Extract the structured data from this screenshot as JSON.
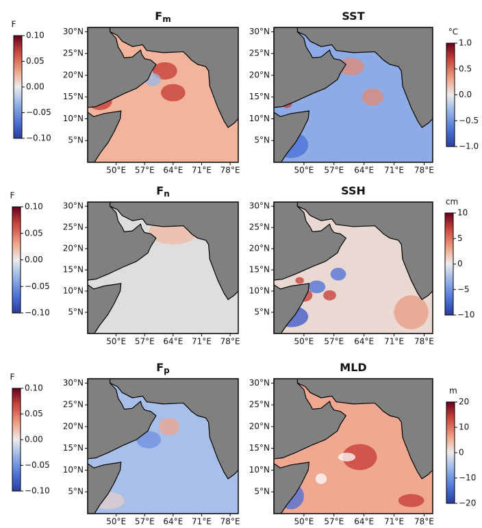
{
  "chart_data": [
    {
      "type": "map",
      "title": "F",
      "title_subscript": "m",
      "colorbar_label": "F",
      "colorbar_lim": [
        -0.1,
        0.1
      ],
      "colorbar_ticks": [
        {
          "value": 0.1,
          "label": "0.10"
        },
        {
          "value": 0.05,
          "label": "0.05"
        },
        {
          "value": 0,
          "label": "0.00"
        },
        {
          "value": -0.05,
          "label": "−0.05"
        },
        {
          "value": -0.1,
          "label": "−0.10"
        }
      ],
      "xlim": [
        43,
        80
      ],
      "ylim": [
        0,
        31
      ],
      "xticks": [
        {
          "value": 50,
          "label": "50°E"
        },
        {
          "value": 57,
          "label": "57°E"
        },
        {
          "value": 64,
          "label": "64°E"
        },
        {
          "value": 71,
          "label": "71°E"
        },
        {
          "value": 78,
          "label": "78°E"
        }
      ],
      "yticks": [
        {
          "value": 5,
          "label": "5°N"
        },
        {
          "value": 10,
          "label": "10°N"
        },
        {
          "value": 15,
          "label": "15°N"
        },
        {
          "value": 20,
          "label": "20°N"
        },
        {
          "value": 25,
          "label": "25°N"
        },
        {
          "value": 30,
          "label": "30°N"
        }
      ]
    },
    {
      "type": "map",
      "title": "SST",
      "colorbar_label": "°C",
      "colorbar_lim": [
        -1.0,
        1.0
      ],
      "colorbar_ticks": [
        {
          "value": 1.0,
          "label": "1.0"
        },
        {
          "value": 0.5,
          "label": "0.5"
        },
        {
          "value": 0,
          "label": "0.0"
        },
        {
          "value": -0.5,
          "label": "−0.5"
        },
        {
          "value": -1.0,
          "label": "−1.0"
        }
      ],
      "xlim": [
        43,
        80
      ],
      "ylim": [
        0,
        31
      ],
      "xticks": [
        {
          "value": 50,
          "label": "50°E"
        },
        {
          "value": 57,
          "label": "57°E"
        },
        {
          "value": 64,
          "label": "64°E"
        },
        {
          "value": 71,
          "label": "71°E"
        },
        {
          "value": 78,
          "label": "78°E"
        }
      ],
      "yticks": [
        {
          "value": 5,
          "label": "5°N"
        },
        {
          "value": 10,
          "label": "10°N"
        },
        {
          "value": 15,
          "label": "15°N"
        },
        {
          "value": 20,
          "label": "20°N"
        },
        {
          "value": 25,
          "label": "25°N"
        },
        {
          "value": 30,
          "label": "30°N"
        }
      ]
    },
    {
      "type": "map",
      "title": "F",
      "title_subscript": "n",
      "colorbar_label": "F",
      "colorbar_lim": [
        -0.1,
        0.1
      ],
      "colorbar_ticks": [
        {
          "value": 0.1,
          "label": "0.10"
        },
        {
          "value": 0.05,
          "label": "0.05"
        },
        {
          "value": 0,
          "label": "0.00"
        },
        {
          "value": -0.05,
          "label": "−0.05"
        },
        {
          "value": -0.1,
          "label": "−0.10"
        }
      ],
      "xlim": [
        43,
        80
      ],
      "ylim": [
        0,
        31
      ],
      "xticks": [
        {
          "value": 50,
          "label": "50°E"
        },
        {
          "value": 57,
          "label": "57°E"
        },
        {
          "value": 64,
          "label": "64°E"
        },
        {
          "value": 71,
          "label": "71°E"
        },
        {
          "value": 78,
          "label": "78°E"
        }
      ],
      "yticks": [
        {
          "value": 5,
          "label": "5°N"
        },
        {
          "value": 10,
          "label": "10°N"
        },
        {
          "value": 15,
          "label": "15°N"
        },
        {
          "value": 20,
          "label": "20°N"
        },
        {
          "value": 25,
          "label": "25°N"
        },
        {
          "value": 30,
          "label": "30°N"
        }
      ]
    },
    {
      "type": "map",
      "title": "SSH",
      "colorbar_label": "cm",
      "colorbar_lim": [
        -10,
        10
      ],
      "colorbar_ticks": [
        10,
        5,
        0,
        {
          "value": -5,
          "label": "−5"
        },
        {
          "value": -10,
          "label": "−10"
        }
      ],
      "xlim": [
        43,
        80
      ],
      "ylim": [
        0,
        31
      ],
      "xticks": [
        {
          "value": 50,
          "label": "50°E"
        },
        {
          "value": 57,
          "label": "57°E"
        },
        {
          "value": 64,
          "label": "64°E"
        },
        {
          "value": 71,
          "label": "71°E"
        },
        {
          "value": 78,
          "label": "78°E"
        }
      ],
      "yticks": [
        {
          "value": 5,
          "label": "5°N"
        },
        {
          "value": 10,
          "label": "10°N"
        },
        {
          "value": 15,
          "label": "15°N"
        },
        {
          "value": 20,
          "label": "20°N"
        },
        {
          "value": 25,
          "label": "25°N"
        },
        {
          "value": 30,
          "label": "30°N"
        }
      ]
    },
    {
      "type": "map",
      "title": "F",
      "title_subscript": "p",
      "colorbar_label": "F",
      "colorbar_lim": [
        -0.1,
        0.1
      ],
      "colorbar_ticks": [
        {
          "value": 0.1,
          "label": "0.10"
        },
        {
          "value": 0.05,
          "label": "0.05"
        },
        {
          "value": 0,
          "label": "0.00"
        },
        {
          "value": -0.05,
          "label": "−0.05"
        },
        {
          "value": -0.1,
          "label": "−0.10"
        }
      ],
      "xlim": [
        43,
        80
      ],
      "ylim": [
        0,
        31
      ],
      "xticks": [
        {
          "value": 50,
          "label": "50°E"
        },
        {
          "value": 57,
          "label": "57°E"
        },
        {
          "value": 64,
          "label": "64°E"
        },
        {
          "value": 71,
          "label": "71°E"
        },
        {
          "value": 78,
          "label": "78°E"
        }
      ],
      "yticks": [
        {
          "value": 5,
          "label": "5°N"
        },
        {
          "value": 10,
          "label": "10°N"
        },
        {
          "value": 15,
          "label": "15°N"
        },
        {
          "value": 20,
          "label": "20°N"
        },
        {
          "value": 25,
          "label": "25°N"
        },
        {
          "value": 30,
          "label": "30°N"
        }
      ]
    },
    {
      "type": "map",
      "title": "MLD",
      "colorbar_label": "m",
      "colorbar_lim": [
        -20,
        20
      ],
      "colorbar_ticks": [
        20,
        10,
        0,
        {
          "value": -10,
          "label": "−10"
        },
        {
          "value": -20,
          "label": "−20"
        }
      ],
      "xlim": [
        43,
        80
      ],
      "ylim": [
        0,
        31
      ],
      "xticks": [
        {
          "value": 50,
          "label": "50°E"
        },
        {
          "value": 57,
          "label": "57°E"
        },
        {
          "value": 64,
          "label": "64°E"
        },
        {
          "value": 71,
          "label": "71°E"
        },
        {
          "value": 78,
          "label": "78°E"
        }
      ],
      "yticks": [
        {
          "value": 5,
          "label": "5°N"
        },
        {
          "value": 10,
          "label": "10°N"
        },
        {
          "value": 15,
          "label": "15°N"
        },
        {
          "value": 20,
          "label": "20°N"
        },
        {
          "value": 25,
          "label": "25°N"
        },
        {
          "value": 30,
          "label": "30°N"
        }
      ]
    }
  ]
}
